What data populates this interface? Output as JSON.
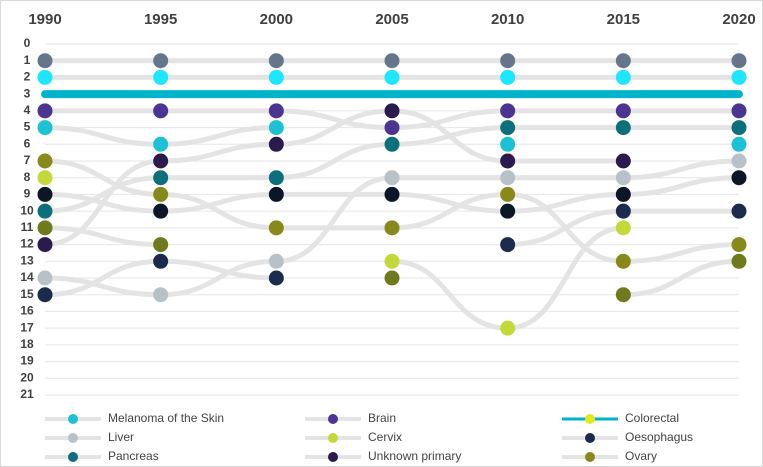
{
  "chart_data": {
    "type": "bump",
    "x": [
      1990,
      1995,
      2000,
      2005,
      2010,
      2015,
      2020
    ],
    "xticks": [
      1990,
      1995,
      2000,
      2005,
      2010,
      2015,
      2020
    ],
    "ylim": [
      0,
      21
    ],
    "yticks": [
      0,
      1,
      2,
      3,
      4,
      5,
      6,
      7,
      8,
      9,
      10,
      11,
      12,
      13,
      14,
      15,
      16,
      17,
      18,
      19,
      20,
      21
    ],
    "y_inverted": true,
    "grid": true,
    "line_color": "#e4e4e4",
    "series": [
      {
        "color": "#66768a",
        "values": [
          1,
          1,
          1,
          1,
          1,
          1,
          1
        ]
      },
      {
        "color": "#1fe6ff",
        "values": [
          2,
          2,
          2,
          2,
          2,
          2,
          2
        ]
      },
      {
        "name": "Colorectal",
        "color": "#00b4cc",
        "marker_color": "#e2e81a",
        "line_only": true,
        "values": [
          3,
          3,
          3,
          3,
          3,
          3,
          3
        ]
      },
      {
        "name": "Brain",
        "color": "#4a3592",
        "values": [
          4,
          4,
          4,
          5,
          4,
          4,
          4
        ]
      },
      {
        "name": "Melanoma of the Skin",
        "color": "#1cc2d4",
        "values": [
          5,
          6,
          5,
          null,
          6,
          null,
          6
        ]
      },
      {
        "name": "Pancreas",
        "color": "#0e6f7c",
        "values": [
          10,
          8,
          8,
          6,
          5,
          5,
          5
        ]
      },
      {
        "name": "Liver",
        "color": "#b8c0c8",
        "values": [
          14,
          15,
          13,
          8,
          8,
          8,
          7
        ]
      },
      {
        "name": "Cervix",
        "color": "#c3d93a",
        "values": [
          8,
          null,
          null,
          13,
          17,
          11,
          null
        ]
      },
      {
        "color": "#0d1626",
        "values": [
          9,
          10,
          9,
          9,
          10,
          9,
          8
        ]
      },
      {
        "name": "Oesophagus",
        "color": "#1b2b4d",
        "values": [
          15,
          13,
          14,
          null,
          12,
          10,
          10
        ]
      },
      {
        "name": "Unknown primary",
        "color": "#2b1a4d",
        "values": [
          12,
          7,
          6,
          4,
          7,
          7,
          null
        ]
      },
      {
        "name": "Ovary",
        "color": "#87891a",
        "values": [
          7,
          9,
          11,
          11,
          9,
          13,
          12
        ]
      },
      {
        "color": "#6f7a1c",
        "values": [
          11,
          12,
          null,
          14,
          null,
          15,
          13
        ]
      }
    ]
  }
}
